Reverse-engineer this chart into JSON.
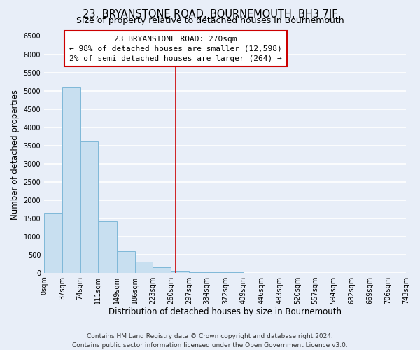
{
  "title": "23, BRYANSTONE ROAD, BOURNEMOUTH, BH3 7JF",
  "subtitle": "Size of property relative to detached houses in Bournemouth",
  "xlabel": "Distribution of detached houses by size in Bournemouth",
  "ylabel": "Number of detached properties",
  "bar_edges": [
    0,
    37,
    74,
    111,
    149,
    186,
    223,
    260,
    297,
    334,
    372,
    409,
    446,
    483,
    520,
    557,
    594,
    632,
    669,
    706,
    743
  ],
  "bar_heights": [
    1650,
    5080,
    3600,
    1420,
    580,
    295,
    145,
    55,
    20,
    5,
    3,
    0,
    0,
    0,
    0,
    0,
    0,
    0,
    0,
    0
  ],
  "bar_color": "#c8dff0",
  "bar_edgecolor": "#7fb8d8",
  "property_line_x": 270,
  "property_line_color": "#cc0000",
  "annotation_title": "23 BRYANSTONE ROAD: 270sqm",
  "annotation_line1": "← 98% of detached houses are smaller (12,598)",
  "annotation_line2": "2% of semi-detached houses are larger (264) →",
  "annotation_box_color": "#ffffff",
  "annotation_box_edgecolor": "#cc0000",
  "ylim": [
    0,
    6500
  ],
  "yticks": [
    0,
    500,
    1000,
    1500,
    2000,
    2500,
    3000,
    3500,
    4000,
    4500,
    5000,
    5500,
    6000,
    6500
  ],
  "xtick_labels": [
    "0sqm",
    "37sqm",
    "74sqm",
    "111sqm",
    "149sqm",
    "186sqm",
    "223sqm",
    "260sqm",
    "297sqm",
    "334sqm",
    "372sqm",
    "409sqm",
    "446sqm",
    "483sqm",
    "520sqm",
    "557sqm",
    "594sqm",
    "632sqm",
    "669sqm",
    "706sqm",
    "743sqm"
  ],
  "footer_line1": "Contains HM Land Registry data © Crown copyright and database right 2024.",
  "footer_line2": "Contains public sector information licensed under the Open Government Licence v3.0.",
  "background_color": "#e8eef8",
  "grid_color": "#ffffff",
  "title_fontsize": 10.5,
  "subtitle_fontsize": 9,
  "axis_label_fontsize": 8.5,
  "tick_fontsize": 7,
  "footer_fontsize": 6.5
}
